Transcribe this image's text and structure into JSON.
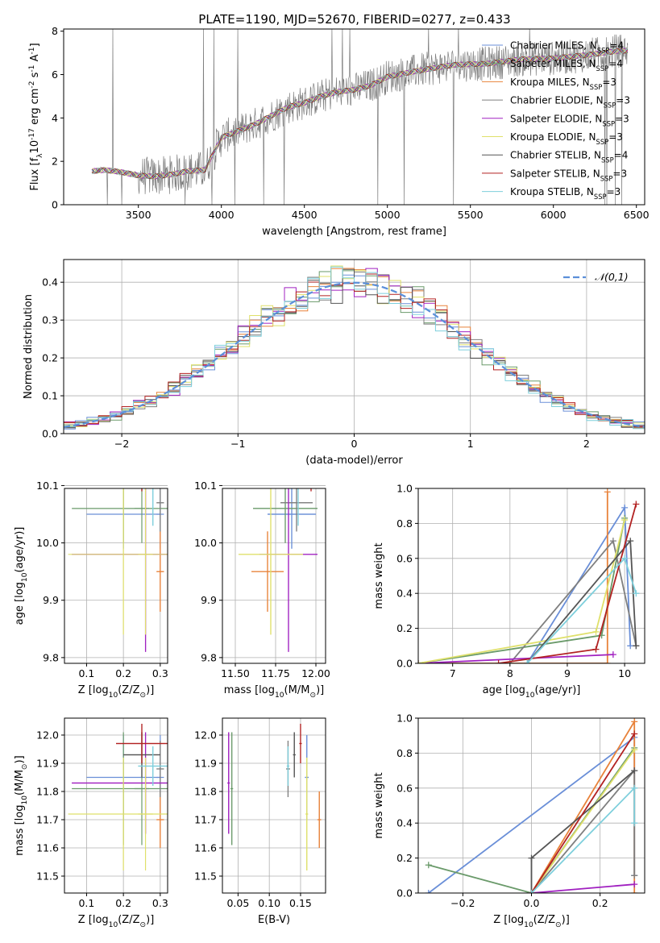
{
  "figure_title": "PLATE=1190, MJD=52670, FIBERID=0277, z=0.433",
  "chart_data": [
    {
      "id": "spectrum",
      "type": "line",
      "title": "PLATE=1190, MJD=52670, FIBERID=0277, z=0.433",
      "xlabel": "wavelength [Angstrom, rest frame]",
      "ylabel": "Flux [f$_\\lambda$10$^{-17}$ erg cm$^{-2}$ s$^{-1}$ A$^{-1}$]",
      "xlim": [
        3050,
        6550
      ],
      "ylim": [
        0,
        8.1
      ],
      "xticks": [
        3500,
        4000,
        4500,
        5000,
        5500,
        6000,
        6500
      ],
      "yticks": [
        0,
        2,
        4,
        6,
        8
      ],
      "grid": false,
      "legend_position": "right",
      "data_start": 3220,
      "data_end": 6450,
      "continuum": {
        "x": [
          3220,
          3300,
          3400,
          3500,
          3600,
          3700,
          3800,
          3900,
          4000,
          4100,
          4200,
          4300,
          4400,
          4500,
          4600,
          4700,
          4800,
          4900,
          5000,
          5200,
          5400,
          5600,
          5800,
          6000,
          6200,
          6400
        ],
        "y": [
          1.55,
          1.6,
          1.5,
          1.35,
          1.3,
          1.4,
          1.55,
          1.6,
          3.1,
          3.4,
          3.7,
          4.1,
          4.5,
          4.7,
          5.0,
          5.2,
          5.3,
          5.5,
          5.9,
          6.2,
          6.45,
          6.5,
          6.7,
          6.75,
          6.9,
          7.1
        ]
      },
      "series": [
        {
          "name": "Chabrier MILES, N$_{SSP}$=4",
          "color": "#6a8fd8"
        },
        {
          "name": "Salpeter MILES, N$_{SSP}$=4",
          "color": "#6a9a6a"
        },
        {
          "name": "Kroupa MILES, N$_{SSP}$=3",
          "color": "#e8823a"
        },
        {
          "name": "Chabrier ELODIE, N$_{SSP}$=3",
          "color": "#7f7f7f"
        },
        {
          "name": "Salpeter ELODIE, N$_{SSP}$=3",
          "color": "#a020c0"
        },
        {
          "name": "Kroupa ELODIE, N$_{SSP}$=3",
          "color": "#dfe06a"
        },
        {
          "name": "Chabrier STELIB, N$_{SSP}$=4",
          "color": "#555555"
        },
        {
          "name": "Salpeter STELIB, N$_{SSP}$=3",
          "color": "#b22222"
        },
        {
          "name": "Kroupa STELIB, N$_{SSP}$=3",
          "color": "#7ecfdc"
        }
      ]
    },
    {
      "id": "residuals",
      "type": "bar",
      "xlabel": "(data-model)/error",
      "ylabel": "Normed distribution",
      "xlim": [
        -2.5,
        2.5
      ],
      "ylim": [
        0,
        0.46
      ],
      "xticks": [
        -2,
        -1,
        0,
        1,
        2
      ],
      "yticks": [
        0.0,
        0.1,
        0.2,
        0.3,
        0.4
      ],
      "grid": true,
      "legend_position": "top-right",
      "reference_label": "$\\mathcal{N}(0,1)$",
      "bin_width": 0.1,
      "bin_start": -2.5,
      "hist_colors": [
        "#6a8fd8",
        "#6a9a6a",
        "#e8823a",
        "#7f7f7f",
        "#a020c0",
        "#dfe06a",
        "#555555",
        "#b22222",
        "#7ecfdc"
      ]
    },
    {
      "id": "age_vs_Z",
      "type": "scatter",
      "xlabel": "Z [log$_{10}$(Z/Z$_\\odot$)]",
      "ylabel": "age  [log$_{10}$(age/yr)]",
      "xlim": [
        0.04,
        0.32
      ],
      "ylim": [
        9.79,
        10.095
      ],
      "xticks": [
        0.1,
        0.2,
        0.3
      ],
      "yticks": [
        9.8,
        9.9,
        10.0,
        10.1
      ],
      "grid": true
    },
    {
      "id": "age_vs_mass",
      "type": "scatter",
      "xlabel": "mass [log$_{10}$(M/M$_\\odot$)]",
      "xlim": [
        11.42,
        12.06
      ],
      "ylim": [
        9.79,
        10.095
      ],
      "xticks": [
        11.5,
        11.75,
        12.0
      ],
      "yticks": [
        9.8,
        9.9,
        10.0,
        10.1
      ],
      "grid": true
    },
    {
      "id": "weight_vs_age",
      "type": "line",
      "xlabel": "age  [log$_{10}$(age/yr)]",
      "ylabel": "mass weight",
      "xlim": [
        6.4,
        10.35
      ],
      "ylim": [
        0,
        1.0
      ],
      "xticks": [
        7,
        8,
        9,
        10
      ],
      "yticks": [
        0.0,
        0.2,
        0.4,
        0.6,
        0.8,
        1.0
      ],
      "grid": true
    },
    {
      "id": "mass_vs_Z",
      "type": "scatter",
      "xlabel": "Z [log$_{10}$(Z/Z$_\\odot$)]",
      "ylabel": "mass [log$_{10}$(M/M$_\\odot$)]",
      "xlim": [
        0.04,
        0.32
      ],
      "ylim": [
        11.44,
        12.06
      ],
      "xticks": [
        0.1,
        0.2,
        0.3
      ],
      "yticks": [
        11.5,
        11.6,
        11.7,
        11.8,
        11.9,
        12.0
      ],
      "grid": true
    },
    {
      "id": "mass_vs_ebv",
      "type": "scatter",
      "xlabel": "E(B-V)",
      "xlim": [
        0.025,
        0.19
      ],
      "ylim": [
        11.44,
        12.06
      ],
      "xticks": [
        0.05,
        0.1,
        0.15
      ],
      "yticks": [
        11.5,
        11.6,
        11.7,
        11.8,
        11.9,
        12.0
      ],
      "grid": true
    },
    {
      "id": "weight_vs_Z",
      "type": "line",
      "xlabel": "Z [log$_{10}$(Z/Z$_\\odot$)]",
      "ylabel": "mass weight",
      "xlim": [
        -0.33,
        0.33
      ],
      "ylim": [
        0,
        1.0
      ],
      "xticks": [
        -0.2,
        0.0,
        0.2
      ],
      "yticks": [
        0.0,
        0.2,
        0.4,
        0.6,
        0.8,
        1.0
      ],
      "grid": true
    }
  ],
  "models": [
    {
      "name": "Chabrier MILES",
      "color": "#6a8fd8",
      "Z": [
        0.2,
        0.3
      ],
      "Zerr": [
        0.1,
        0.01
      ],
      "age": [
        10.05,
        10.05
      ],
      "ageErr": [
        0.06,
        0.06
      ],
      "mass": [
        11.85,
        11.85
      ],
      "massErr": [
        0.15,
        0.15
      ],
      "ebv": [
        0.16,
        0.16
      ],
      "ebvErr": [
        0.003,
        0.003
      ],
      "w_age": [
        [
          8.3,
          0.0
        ],
        [
          10.0,
          0.89
        ],
        [
          10.1,
          0.1
        ]
      ],
      "w_Z": [
        [
          -0.3,
          0.0
        ],
        [
          0.3,
          0.89
        ],
        [
          0.3,
          0.1
        ]
      ]
    },
    {
      "name": "Salpeter MILES",
      "color": "#6a9a6a",
      "Z": [
        0.2,
        0.25
      ],
      "Zerr": [
        0.14,
        0.02
      ],
      "age": [
        10.06,
        10.06
      ],
      "ageErr": [
        0.06,
        0.06
      ],
      "mass": [
        11.81,
        11.81
      ],
      "massErr": [
        0.2,
        0.2
      ],
      "ebv": [
        0.04,
        0.04
      ],
      "ebvErr": [
        0.002,
        0.002
      ],
      "w_age": [
        [
          6.4,
          0.0
        ],
        [
          9.6,
          0.16
        ],
        [
          10.0,
          0.83
        ]
      ],
      "w_Z": [
        [
          -0.3,
          0.16
        ],
        [
          0.0,
          0.0
        ],
        [
          0.3,
          0.83
        ]
      ]
    },
    {
      "name": "Kroupa MILES",
      "color": "#e8823a",
      "Z": [
        0.3,
        0.3
      ],
      "Zerr": [
        0.01,
        0.01
      ],
      "age": [
        9.95,
        9.95
      ],
      "ageErr": [
        0.07,
        0.07
      ],
      "mass": [
        11.7,
        11.7
      ],
      "massErr": [
        0.1,
        0.1
      ],
      "ebv": [
        0.18,
        0.18
      ],
      "ebvErr": [
        0.003,
        0.003
      ],
      "w_age": [
        [
          6.4,
          0.0
        ],
        [
          9.7,
          0.0
        ],
        [
          9.7,
          0.98
        ]
      ],
      "w_Z": [
        [
          0.0,
          0.0
        ],
        [
          0.3,
          0.98
        ],
        [
          0.3,
          0.0
        ]
      ]
    },
    {
      "name": "Chabrier ELODIE",
      "color": "#7f7f7f",
      "Z": [
        0.3,
        0.3
      ],
      "Zerr": [
        0.01,
        0.01
      ],
      "age": [
        10.07,
        10.07
      ],
      "ageErr": [
        0.05,
        0.05
      ],
      "mass": [
        11.88,
        11.88
      ],
      "massErr": [
        0.1,
        0.1
      ],
      "ebv": [
        0.13,
        0.13
      ],
      "ebvErr": [
        0.003,
        0.003
      ],
      "w_age": [
        [
          8.0,
          0.0
        ],
        [
          9.8,
          0.7
        ],
        [
          10.2,
          0.1
        ]
      ],
      "w_Z": [
        [
          0.0,
          0.0
        ],
        [
          0.3,
          0.7
        ],
        [
          0.3,
          0.1
        ]
      ]
    },
    {
      "name": "Salpeter ELODIE",
      "color": "#a020c0",
      "Z": [
        0.26,
        0.26
      ],
      "Zerr": [
        0.2,
        0.2
      ],
      "age": [
        9.98,
        9.98
      ],
      "ageErr": [
        0.17,
        0.17
      ],
      "mass": [
        11.83,
        11.83
      ],
      "massErr": [
        0.18,
        0.18
      ],
      "ebv": [
        0.035,
        0.035
      ],
      "ebvErr": [
        0.002,
        0.002
      ],
      "w_age": [
        [
          6.4,
          0.0
        ],
        [
          9.8,
          0.05
        ]
      ],
      "w_Z": [
        [
          0.0,
          0.0
        ],
        [
          0.3,
          0.05
        ]
      ]
    },
    {
      "name": "Kroupa ELODIE",
      "color": "#dfe06a",
      "Z": [
        0.2,
        0.26
      ],
      "Zerr": [
        0.15,
        0.02
      ],
      "age": [
        9.98,
        9.98
      ],
      "ageErr": [
        0.14,
        0.14
      ],
      "mass": [
        11.72,
        11.72
      ],
      "massErr": [
        0.2,
        0.2
      ],
      "ebv": [
        0.16,
        0.16
      ],
      "ebvErr": [
        0.002,
        0.002
      ],
      "w_age": [
        [
          6.4,
          0.0
        ],
        [
          9.5,
          0.18
        ],
        [
          10.0,
          0.82
        ]
      ],
      "w_Z": [
        [
          0.0,
          0.0
        ],
        [
          0.3,
          0.82
        ]
      ]
    },
    {
      "name": "Chabrier STELIB",
      "color": "#555555",
      "Z": [
        0.25,
        0.25
      ],
      "Zerr": [
        0.05,
        0.05
      ],
      "age": [
        10.13,
        10.13
      ],
      "ageErr": [
        0.03,
        0.03
      ],
      "mass": [
        11.93,
        11.93
      ],
      "massErr": [
        0.08,
        0.08
      ],
      "ebv": [
        0.14,
        0.14
      ],
      "ebvErr": [
        0.002,
        0.002
      ],
      "w_age": [
        [
          8.3,
          0.0
        ],
        [
          10.1,
          0.7
        ],
        [
          10.2,
          0.1
        ]
      ],
      "w_Z": [
        [
          0.0,
          0.0
        ],
        [
          0.0,
          0.2
        ],
        [
          0.3,
          0.7
        ]
      ]
    },
    {
      "name": "Salpeter STELIB",
      "color": "#b22222",
      "Z": [
        0.25,
        0.25
      ],
      "Zerr": [
        0.07,
        0.07
      ],
      "age": [
        10.14,
        10.14
      ],
      "ageErr": [
        0.05,
        0.05
      ],
      "mass": [
        11.97,
        11.97
      ],
      "massErr": [
        0.07,
        0.07
      ],
      "ebv": [
        0.15,
        0.15
      ],
      "ebvErr": [
        0.002,
        0.002
      ],
      "w_age": [
        [
          7.8,
          0.0
        ],
        [
          9.5,
          0.08
        ],
        [
          10.2,
          0.91
        ]
      ],
      "w_Z": [
        [
          0.0,
          0.0
        ],
        [
          0.3,
          0.91
        ]
      ]
    },
    {
      "name": "Kroupa STELIB",
      "color": "#7ecfdc",
      "Z": [
        0.28,
        0.28
      ],
      "Zerr": [
        0.04,
        0.04
      ],
      "age": [
        10.1,
        10.1
      ],
      "ageErr": [
        0.07,
        0.07
      ],
      "mass": [
        11.89,
        11.89
      ],
      "massErr": [
        0.07,
        0.07
      ],
      "ebv": [
        0.13,
        0.13
      ],
      "ebvErr": [
        0.002,
        0.002
      ],
      "w_age": [
        [
          8.3,
          0.0
        ],
        [
          10.0,
          0.6
        ],
        [
          10.2,
          0.4
        ]
      ],
      "w_Z": [
        [
          0.0,
          0.0
        ],
        [
          0.3,
          0.6
        ],
        [
          0.3,
          0.4
        ]
      ]
    }
  ]
}
